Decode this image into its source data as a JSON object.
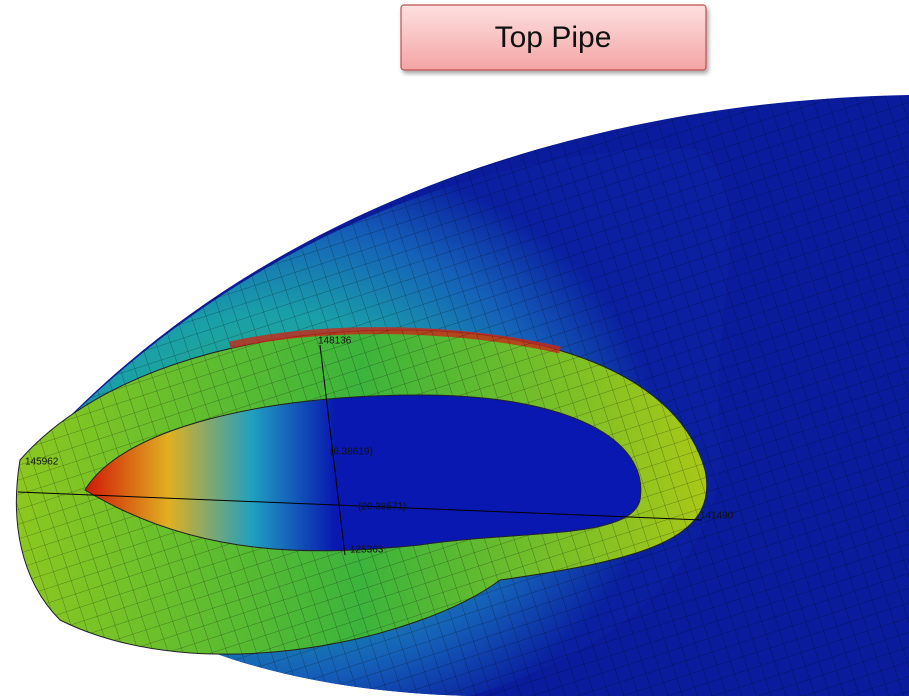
{
  "title": "Top Pipe",
  "labels": [
    "148136",
    "(6.38619)",
    "145962",
    "(20.38571)",
    "125363",
    "141490"
  ]
}
